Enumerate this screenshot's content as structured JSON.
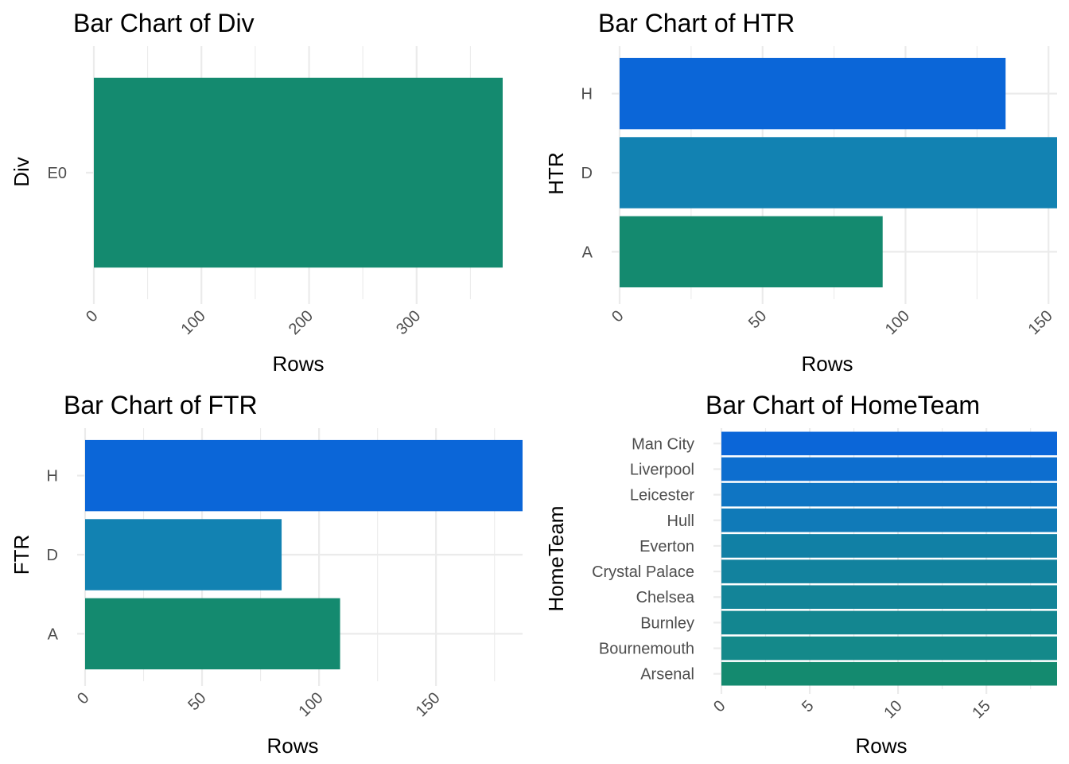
{
  "chart_data": [
    {
      "type": "bar",
      "orientation": "horizontal",
      "title": "Bar Chart of Div",
      "xlabel": "Rows",
      "ylabel": "Div",
      "categories": [
        "E0"
      ],
      "values": [
        380
      ],
      "xlim": [
        0,
        380
      ],
      "xticks": [
        0,
        100,
        200,
        300
      ],
      "xtick_labels": [
        "0",
        "100",
        "200",
        "300"
      ],
      "colors": [
        "#148a6f"
      ]
    },
    {
      "type": "bar",
      "orientation": "horizontal",
      "title": "Bar Chart of HTR",
      "xlabel": "Rows",
      "ylabel": "HTR",
      "categories": [
        "A",
        "D",
        "H"
      ],
      "values": [
        92,
        153,
        135
      ],
      "xlim": [
        0,
        153
      ],
      "xticks": [
        0,
        50,
        100,
        150
      ],
      "xtick_labels": [
        "0",
        "50",
        "100",
        "150"
      ],
      "colors": [
        "#148a6f",
        "#1282b2",
        "#0b66d8"
      ]
    },
    {
      "type": "bar",
      "orientation": "horizontal",
      "title": "Bar Chart of FTR",
      "xlabel": "Rows",
      "ylabel": "FTR",
      "categories": [
        "A",
        "D",
        "H"
      ],
      "values": [
        109,
        84,
        187
      ],
      "xlim": [
        0,
        187
      ],
      "xticks": [
        0,
        50,
        100,
        150
      ],
      "xtick_labels": [
        "0",
        "50",
        "100",
        "150"
      ],
      "colors": [
        "#148a6f",
        "#1282b2",
        "#0b66d8"
      ]
    },
    {
      "type": "bar",
      "orientation": "horizontal",
      "title": "Bar Chart of HomeTeam",
      "xlabel": "Rows",
      "ylabel": "HomeTeam",
      "categories": [
        "Arsenal",
        "Bournemouth",
        "Burnley",
        "Chelsea",
        "Crystal Palace",
        "Everton",
        "Hull",
        "Leicester",
        "Liverpool",
        "Man City"
      ],
      "values": [
        19,
        19,
        19,
        19,
        19,
        19,
        19,
        19,
        19,
        19
      ],
      "xlim": [
        0,
        19
      ],
      "xticks": [
        0,
        5,
        10,
        15
      ],
      "xtick_labels": [
        "0",
        "5",
        "10",
        "15"
      ],
      "colors": [
        "#148a6f",
        "#14898a",
        "#138690",
        "#138498",
        "#12829e",
        "#1180a5",
        "#107ab8",
        "#0f75c3",
        "#0d6ecf",
        "#0b66d8"
      ]
    }
  ]
}
